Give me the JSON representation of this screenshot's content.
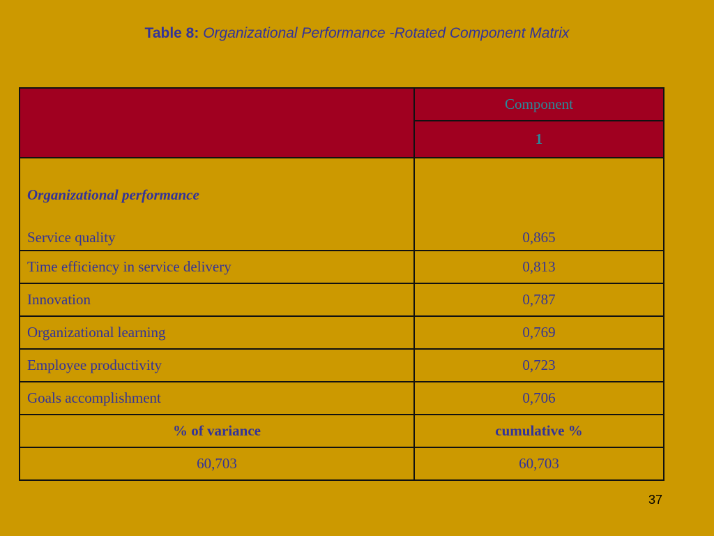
{
  "title": {
    "label": "Table 8:",
    "text": "Organizational Performance -Rotated Component Matrix"
  },
  "table": {
    "header": {
      "group": "Component",
      "column": "1"
    },
    "section": "Organizational performance",
    "rows": [
      [
        "Service quality",
        "0,865"
      ],
      [
        "Time efficiency in service delivery",
        "0,813"
      ],
      [
        "Innovation",
        "0,787"
      ],
      [
        "Organizational learning",
        "0,769"
      ],
      [
        "Employee productivity",
        "0,723"
      ],
      [
        "Goals accomplishment",
        "0,706"
      ]
    ],
    "footer": {
      "headers": [
        "% of variance",
        "cumulative %"
      ],
      "values": [
        "60,703",
        "60,703"
      ]
    }
  },
  "page_number": "37"
}
